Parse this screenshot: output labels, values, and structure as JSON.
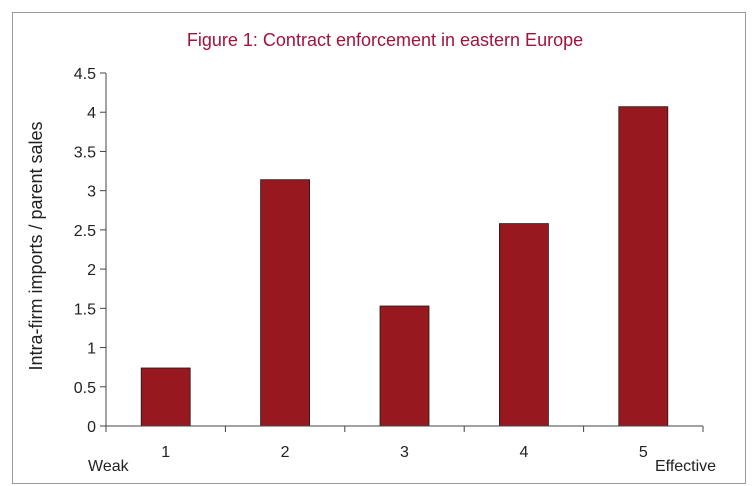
{
  "chart_data": {
    "type": "bar",
    "title": "Figure 1: Contract enforcement in eastern Europe",
    "xlabel": "",
    "ylabel": "Intra-firm imports / parent sales",
    "categories": [
      "1",
      "2",
      "3",
      "4",
      "5"
    ],
    "values": [
      0.74,
      3.14,
      1.53,
      2.58,
      4.07
    ],
    "ylim": [
      0,
      4.5
    ],
    "yticks": [
      "0",
      "0.5",
      "1",
      "1.5",
      "2",
      "2.5",
      "3",
      "3.5",
      "4",
      "4.5"
    ],
    "x_end_labels": {
      "left": "Weak",
      "right": "Effective"
    },
    "grid": false,
    "legend": "none",
    "colors": {
      "bar": "#97191f",
      "title": "#a3123a",
      "axis": "#444444"
    }
  }
}
